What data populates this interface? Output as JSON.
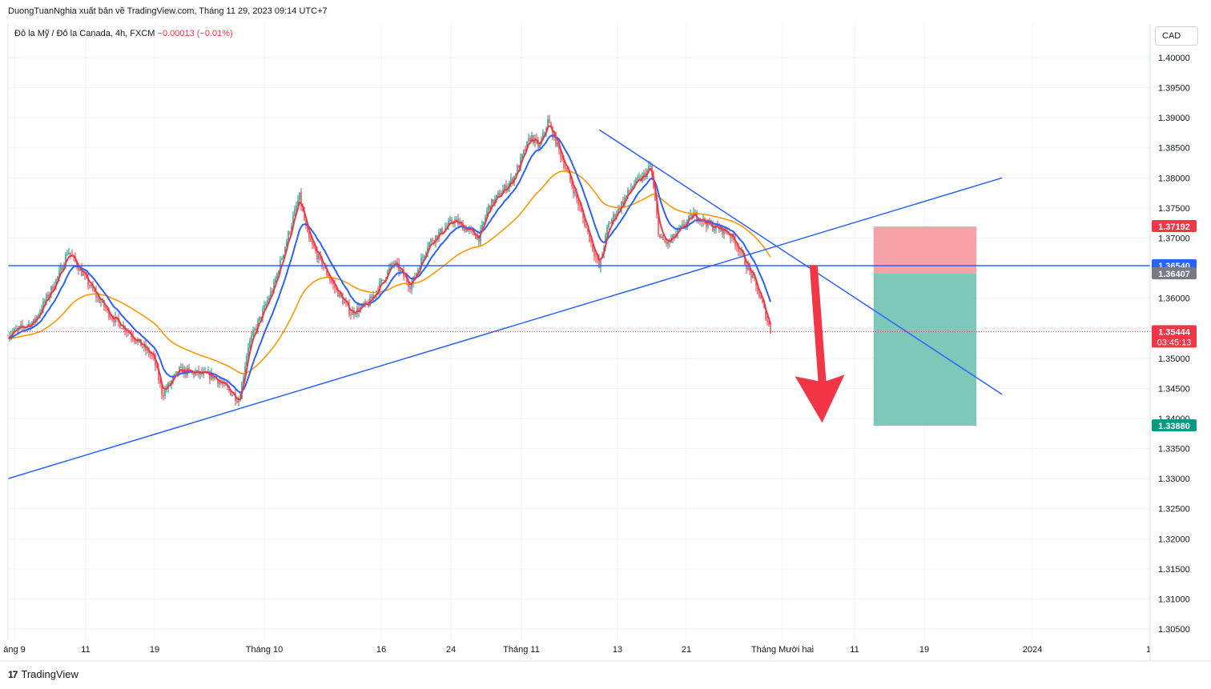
{
  "header": {
    "published_by": "DuongTuanNghia xuất bản về TradingView.com, Tháng 11 29, 2023 09:14 UTC+7"
  },
  "symbol": {
    "name": "Đô la Mỹ / Đô la Canada, 4h, FXCM",
    "change": "−0.00013 (−0.01%)"
  },
  "currency_button": "CAD",
  "footer": {
    "logo_text": "TradingView",
    "logo_mark": "17"
  },
  "colors": {
    "up_candle": "#089981",
    "down_candle": "#f23645",
    "ema_fast": "#f23645",
    "ema_mid": "#2962ff",
    "ema_slow": "#ff9800",
    "trendline": "#2962ff",
    "stop_zone": "#f7a1a8",
    "target_zone": "#7dc8b9",
    "arrow": "#f23645",
    "grid": "#f0f3fa"
  },
  "chart_data": {
    "type": "candlestick",
    "title": "",
    "ylim": [
      1.3025,
      1.4025
    ],
    "y_ticks": [
      "1.40000",
      "1.39500",
      "1.39000",
      "1.38500",
      "1.38000",
      "1.37500",
      "1.37000",
      "1.36500",
      "1.36000",
      "1.35500",
      "1.35000",
      "1.34500",
      "1.34000",
      "1.33500",
      "1.33000",
      "1.32500",
      "1.32000",
      "1.31500",
      "1.31000",
      "1.30500"
    ],
    "x_ticks": [
      "áng 9",
      "11",
      "19",
      "Tháng 10",
      "16",
      "24",
      "Tháng 11",
      "13",
      "21",
      "Tháng Mười hai",
      "11",
      "19",
      "2024",
      "1"
    ],
    "price_path": {
      "x": [
        "Sep 1",
        "Sep 4",
        "Sep 7",
        "Sep 8",
        "Sep 11",
        "Sep 13",
        "Sep 15",
        "Sep 18",
        "Sep 19",
        "Sep 21",
        "Sep 25",
        "Sep 28",
        "Sep 29",
        "Oct 2",
        "Oct 4",
        "Oct 5",
        "Oct 6",
        "Oct 9",
        "Oct 11",
        "Oct 13",
        "Oct 16",
        "Oct 18",
        "Oct 20",
        "Oct 23",
        "Oct 26",
        "Oct 27",
        "Oct 30",
        "Nov 1",
        "Nov 2",
        "Nov 3",
        "Nov 6",
        "Nov 9",
        "Nov 10",
        "Nov 13",
        "Nov 14",
        "Nov 15",
        "Nov 16",
        "Nov 17",
        "Nov 20",
        "Nov 22",
        "Nov 24",
        "Nov 25",
        "Nov 27",
        "Nov 28",
        "Nov 29"
      ],
      "close": [
        1.354,
        1.356,
        1.364,
        1.368,
        1.361,
        1.357,
        1.3545,
        1.35,
        1.344,
        1.348,
        1.347,
        1.343,
        1.352,
        1.362,
        1.372,
        1.377,
        1.37,
        1.362,
        1.3575,
        1.359,
        1.366,
        1.362,
        1.369,
        1.373,
        1.37,
        1.375,
        1.38,
        1.387,
        1.385,
        1.3895,
        1.378,
        1.365,
        1.372,
        1.379,
        1.38,
        1.382,
        1.37,
        1.369,
        1.374,
        1.372,
        1.371,
        1.369,
        1.363,
        1.359,
        1.3544
      ]
    },
    "indicators": [
      {
        "name": "",
        "color": "#f23645",
        "kind": "fast moving average"
      },
      {
        "name": "",
        "color": "#2962ff",
        "kind": "medium moving average"
      },
      {
        "name": "",
        "color": "#ff9800",
        "kind": "slow moving average"
      }
    ],
    "trendlines": [
      {
        "kind": "rising support",
        "from": [
          "Sep 1",
          1.33
        ],
        "to": [
          "Dec 26",
          1.38
        ]
      },
      {
        "kind": "falling resistance",
        "from": [
          "Nov 9",
          1.388
        ],
        "to": [
          "Dec 26",
          1.344
        ]
      },
      {
        "kind": "horizontal",
        "y": 1.3654
      }
    ],
    "short_position": {
      "stop": 1.37192,
      "entry": 1.36407,
      "target": 1.3388,
      "from": "Dec 11",
      "to": "Dec 23"
    },
    "arrow": {
      "direction": "down",
      "from": [
        "Dec 4",
        1.3654
      ],
      "to": [
        "Dec 5",
        1.3393
      ]
    },
    "price_labels": {
      "stop": "1.37192",
      "horizontal": "1.36540",
      "entry": "1.36407",
      "last": "1.35444",
      "countdown": "03:45:13",
      "target": "1.33880"
    },
    "last_price": 1.35444,
    "grid": true
  }
}
